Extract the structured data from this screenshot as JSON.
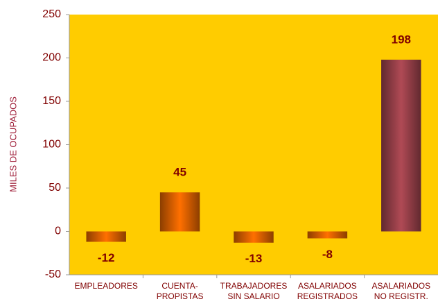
{
  "chart_data": {
    "type": "bar",
    "y_label": "MILES DE OCUPADOS",
    "categories": [
      "EMPLEADORES",
      "CUENTA-\nPROPISTAS",
      "TRABAJADORES\nSIN  SALARIO",
      "ASALARIADOS\nREGISTRADOS",
      "ASALARIADOS\nNO REGISTR."
    ],
    "values": [
      -12,
      45,
      -13,
      -8,
      198
    ],
    "colors": [
      "#ff7000",
      "#ff7000",
      "#ff7000",
      "#ff7000",
      "#b04a55"
    ],
    "ylim": [
      -50,
      250
    ],
    "yticks": [
      -50,
      0,
      50,
      100,
      150,
      200,
      250
    ],
    "plot_background": "#ffcc00",
    "grid": false
  }
}
